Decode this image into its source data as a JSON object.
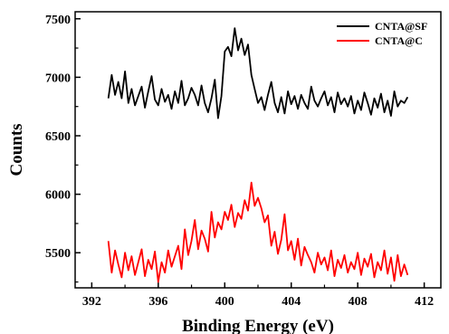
{
  "chart_data": {
    "type": "line",
    "xlabel": "Binding Energy (eV)",
    "ylabel": "Counts",
    "xlim": [
      391,
      413
    ],
    "ylim": [
      5200,
      7560
    ],
    "x_ticks": [
      392,
      396,
      400,
      404,
      408,
      412
    ],
    "y_ticks": [
      5500,
      6000,
      6500,
      7000,
      7500
    ],
    "legend_position": "top-right",
    "grid": false,
    "series": [
      {
        "name": "CNTA@SF",
        "color": "#000000",
        "x": [
          393.0,
          393.2,
          393.4,
          393.6,
          393.8,
          394.0,
          394.2,
          394.4,
          394.6,
          394.8,
          395.0,
          395.2,
          395.4,
          395.6,
          395.8,
          396.0,
          396.2,
          396.4,
          396.6,
          396.8,
          397.0,
          397.2,
          397.4,
          397.6,
          397.8,
          398.0,
          398.2,
          398.4,
          398.6,
          398.8,
          399.0,
          399.2,
          399.4,
          399.6,
          399.8,
          400.0,
          400.2,
          400.4,
          400.6,
          400.8,
          401.0,
          401.2,
          401.4,
          401.6,
          401.8,
          402.0,
          402.2,
          402.4,
          402.6,
          402.8,
          403.0,
          403.2,
          403.4,
          403.6,
          403.8,
          404.0,
          404.2,
          404.4,
          404.6,
          404.8,
          405.0,
          405.2,
          405.4,
          405.6,
          405.8,
          406.0,
          406.2,
          406.4,
          406.6,
          406.8,
          407.0,
          407.2,
          407.4,
          407.6,
          407.8,
          408.0,
          408.2,
          408.4,
          408.6,
          408.8,
          409.0,
          409.2,
          409.4,
          409.6,
          409.8,
          410.0,
          410.2,
          410.4,
          410.6,
          410.8,
          411.0
        ],
        "values": [
          6820,
          7020,
          6850,
          6960,
          6820,
          7050,
          6780,
          6900,
          6760,
          6840,
          6920,
          6740,
          6880,
          7010,
          6810,
          6760,
          6900,
          6790,
          6850,
          6730,
          6880,
          6780,
          6970,
          6760,
          6820,
          6910,
          6850,
          6760,
          6930,
          6780,
          6700,
          6820,
          6980,
          6650,
          6840,
          7220,
          7260,
          7180,
          7420,
          7230,
          7330,
          7190,
          7280,
          7020,
          6900,
          6780,
          6830,
          6720,
          6850,
          6960,
          6780,
          6700,
          6830,
          6690,
          6880,
          6770,
          6840,
          6730,
          6850,
          6780,
          6730,
          6920,
          6800,
          6750,
          6820,
          6880,
          6760,
          6830,
          6700,
          6870,
          6770,
          6820,
          6750,
          6840,
          6690,
          6800,
          6720,
          6870,
          6780,
          6680,
          6820,
          6740,
          6860,
          6700,
          6800,
          6670,
          6880,
          6750,
          6800,
          6780,
          6830
        ]
      },
      {
        "name": "CNTA@C",
        "color": "#ff0000",
        "x": [
          393.0,
          393.2,
          393.4,
          393.6,
          393.8,
          394.0,
          394.2,
          394.4,
          394.6,
          394.8,
          395.0,
          395.2,
          395.4,
          395.6,
          395.8,
          396.0,
          396.2,
          396.4,
          396.6,
          396.8,
          397.0,
          397.2,
          397.4,
          397.6,
          397.8,
          398.0,
          398.2,
          398.4,
          398.6,
          398.8,
          399.0,
          399.2,
          399.4,
          399.6,
          399.8,
          400.0,
          400.2,
          400.4,
          400.6,
          400.8,
          401.0,
          401.2,
          401.4,
          401.6,
          401.8,
          402.0,
          402.2,
          402.4,
          402.6,
          402.8,
          403.0,
          403.2,
          403.4,
          403.6,
          403.8,
          404.0,
          404.2,
          404.4,
          404.6,
          404.8,
          405.0,
          405.2,
          405.4,
          405.6,
          405.8,
          406.0,
          406.2,
          406.4,
          406.6,
          406.8,
          407.0,
          407.2,
          407.4,
          407.6,
          407.8,
          408.0,
          408.2,
          408.4,
          408.6,
          408.8,
          409.0,
          409.2,
          409.4,
          409.6,
          409.8,
          410.0,
          410.2,
          410.4,
          410.6,
          410.8,
          411.0
        ],
        "values": [
          5600,
          5330,
          5520,
          5400,
          5290,
          5500,
          5350,
          5470,
          5310,
          5420,
          5530,
          5300,
          5440,
          5360,
          5510,
          5250,
          5420,
          5330,
          5520,
          5380,
          5470,
          5560,
          5360,
          5700,
          5480,
          5600,
          5780,
          5530,
          5690,
          5620,
          5510,
          5850,
          5630,
          5760,
          5700,
          5850,
          5780,
          5910,
          5720,
          5840,
          5790,
          5950,
          5860,
          6100,
          5900,
          5970,
          5880,
          5760,
          5820,
          5560,
          5680,
          5490,
          5610,
          5830,
          5520,
          5600,
          5440,
          5620,
          5390,
          5550,
          5480,
          5420,
          5330,
          5500,
          5400,
          5460,
          5350,
          5520,
          5300,
          5440,
          5370,
          5480,
          5330,
          5420,
          5360,
          5500,
          5310,
          5450,
          5380,
          5490,
          5290,
          5420,
          5350,
          5520,
          5320,
          5460,
          5260,
          5480,
          5300,
          5400,
          5310
        ]
      }
    ]
  }
}
